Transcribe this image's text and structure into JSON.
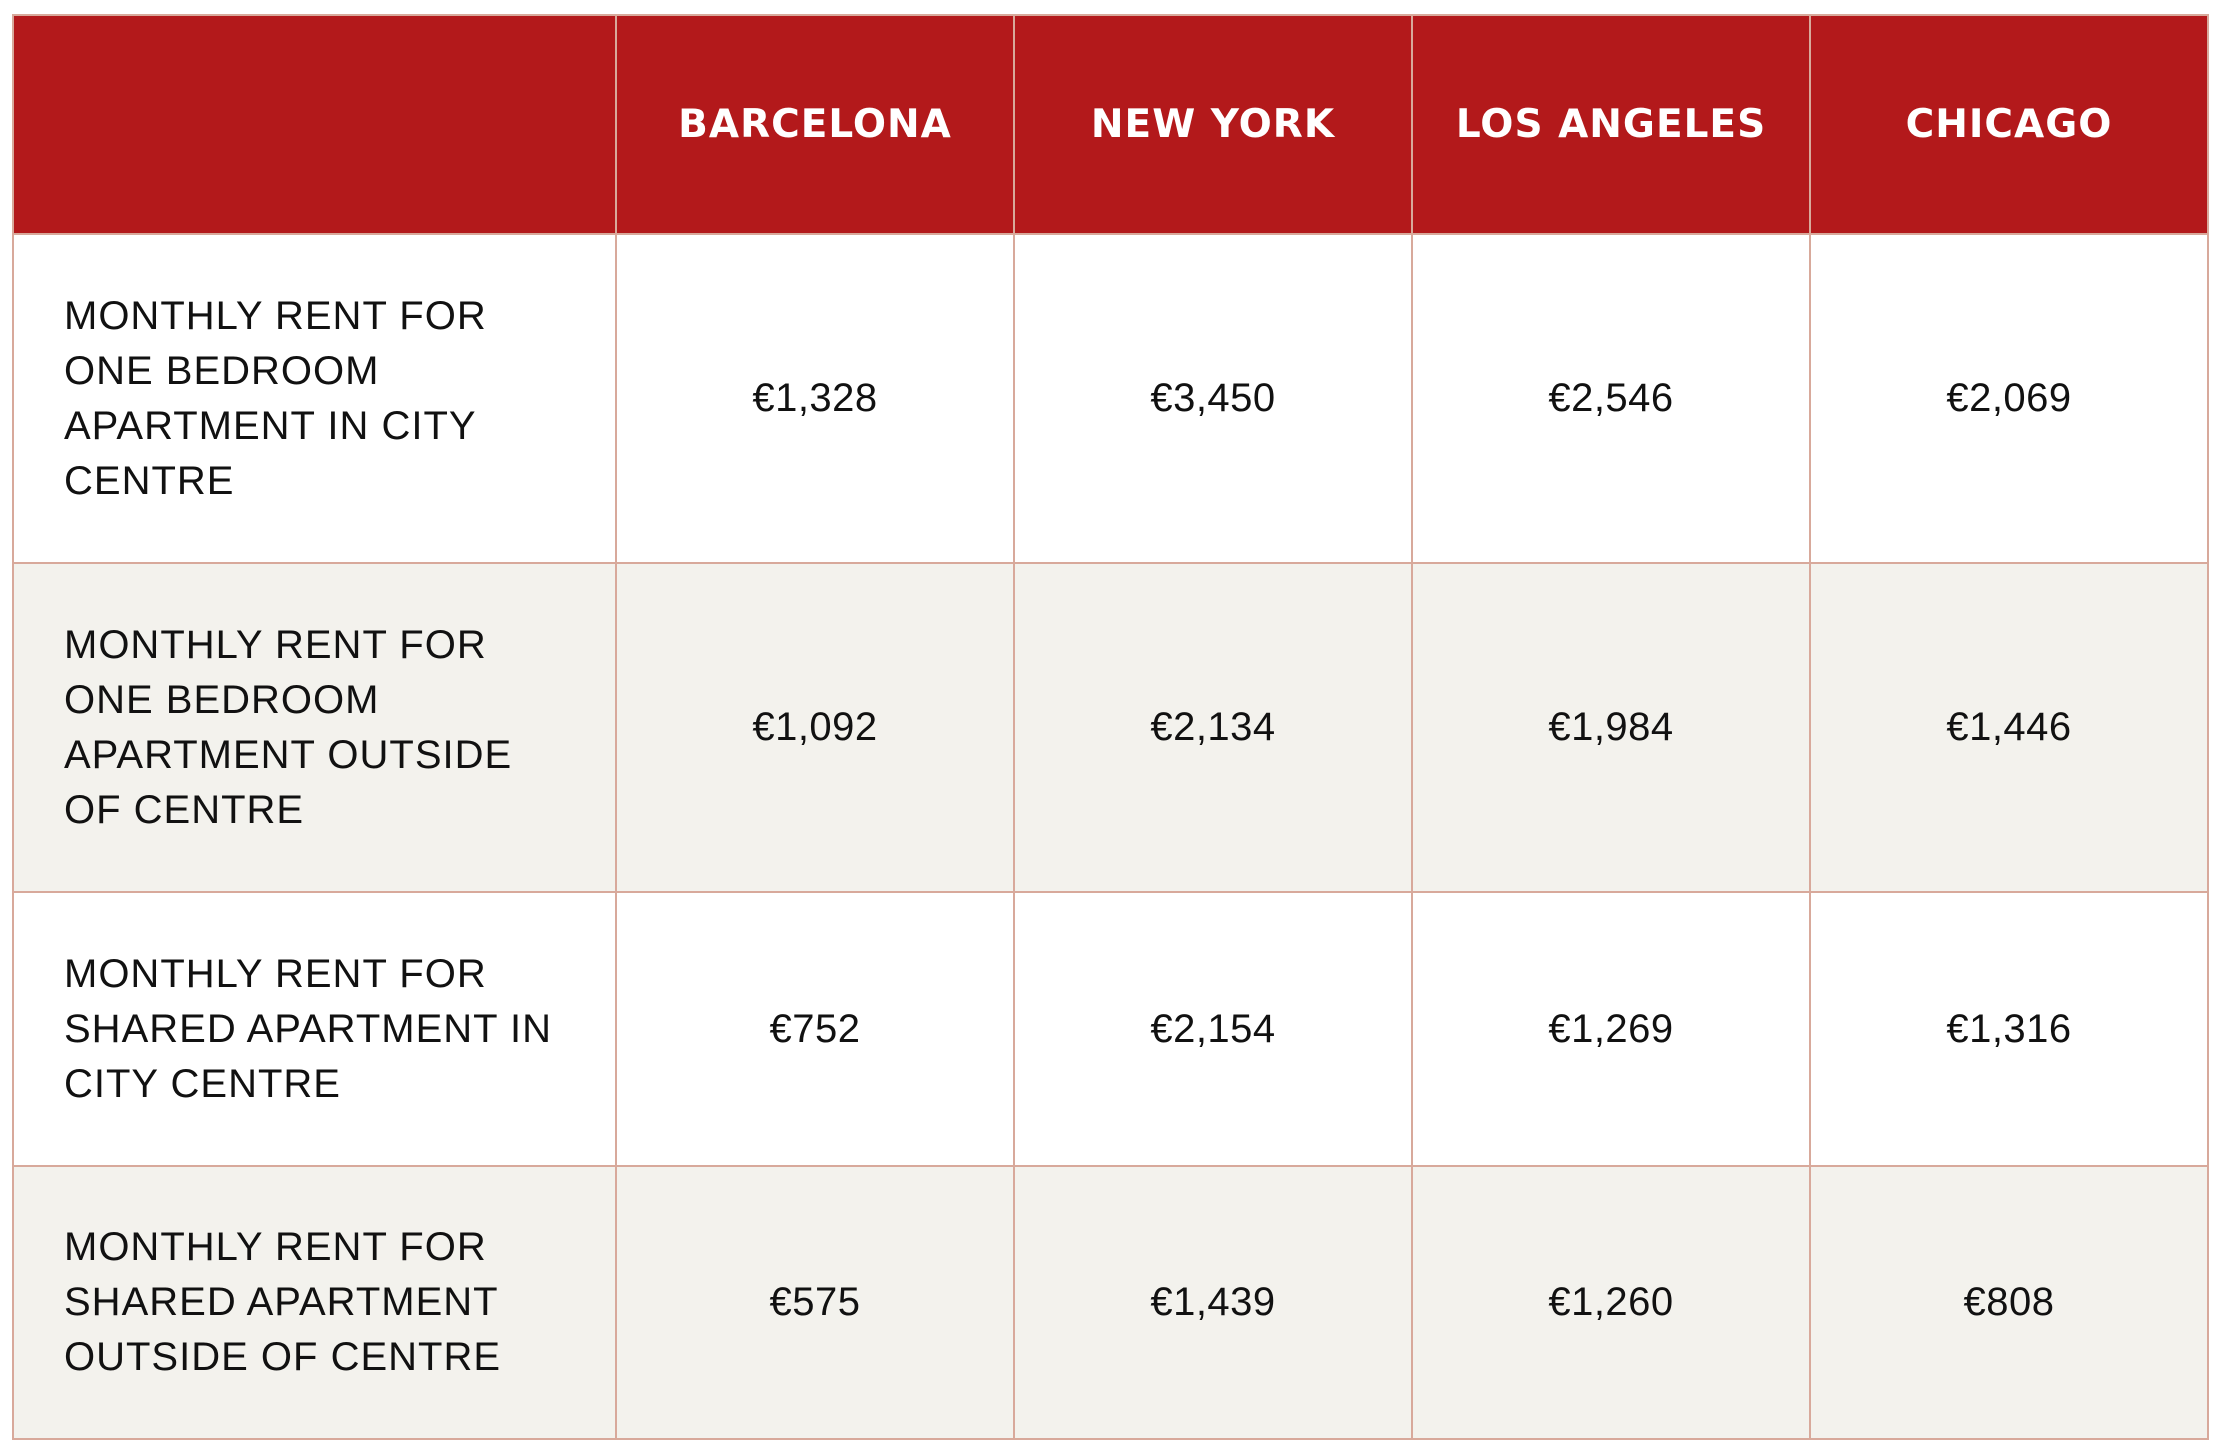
{
  "table": {
    "corner_header": "",
    "columns": [
      "BARCELONA",
      "NEW YORK",
      "LOS ANGELES",
      "CHICAGO"
    ],
    "rows": [
      {
        "label": "MONTHLY RENT FOR ONE BEDROOM APARTMENT IN CITY CENTRE",
        "values": [
          "€1,328",
          "€3,450",
          "€2,546",
          "€2,069"
        ]
      },
      {
        "label": "MONTHLY RENT FOR ONE BEDROOM APARTMENT OUTSIDE OF CENTRE",
        "values": [
          "€1,092",
          "€2,134",
          "€1,984",
          "€1,446"
        ]
      },
      {
        "label": "MONTHLY RENT FOR SHARED APARTMENT IN CITY CENTRE",
        "values": [
          "€752",
          "€2,154",
          "€1,269",
          "€1,316"
        ]
      },
      {
        "label": "MONTHLY RENT FOR SHARED APARTMENT OUTSIDE OF CENTRE",
        "values": [
          "€575",
          "€1,439",
          "€1,260",
          "€808"
        ]
      }
    ]
  },
  "colors": {
    "header_background": "#b3191b",
    "header_text": "#ffffff",
    "grid_line": "#d8a99b",
    "row_alt_background": "#f3f2ed"
  }
}
